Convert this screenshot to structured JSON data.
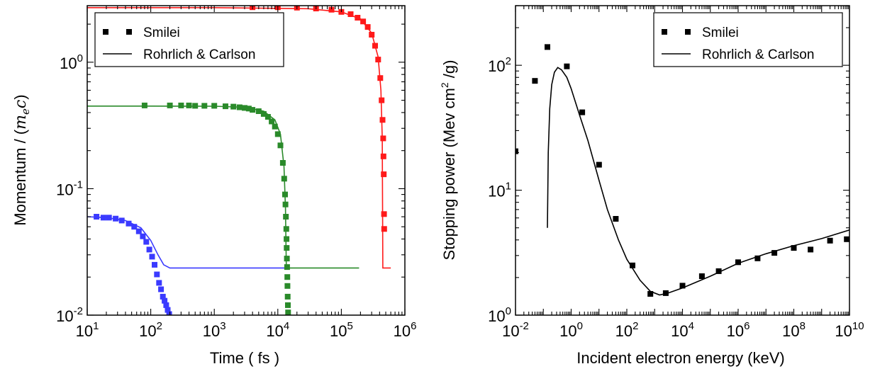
{
  "chart_data": [
    {
      "type": "line",
      "xlabel": "Time ( fs )",
      "ylabel_text": "Momentum / (",
      "ylabel_math_base": "m",
      "ylabel_math_sub": "e",
      "ylabel_math_tail": "c",
      "ylabel_close": ")",
      "x_scale": "log",
      "y_scale": "log",
      "xlim": [
        10,
        1000000
      ],
      "ylim": [
        0.01,
        2.8
      ],
      "x_tick_exponents": [
        "1",
        "2",
        "3",
        "4",
        "5",
        "6"
      ],
      "y_tick_exponents": [
        "-2",
        "-1",
        "0"
      ],
      "tick_base": "10",
      "grid": false,
      "legend_position": "top-left",
      "legend": [
        {
          "label": "Smilei",
          "marker": "square",
          "color": "#000000"
        },
        {
          "label": "Rohrlich & Carlson",
          "marker": "line",
          "color": "#000000"
        }
      ],
      "series": [
        {
          "color": "#3a3aff",
          "line": [
            [
              10,
              0.06
            ],
            [
              20,
              0.059
            ],
            [
              40,
              0.056
            ],
            [
              70,
              0.049
            ],
            [
              100,
              0.039
            ],
            [
              130,
              0.03
            ],
            [
              160,
              0.025
            ],
            [
              200,
              0.0236
            ],
            [
              400,
              0.0236
            ],
            [
              1000,
              0.0236
            ],
            [
              10000,
              0.0236
            ],
            [
              13000,
              0.0236
            ]
          ],
          "markers": [
            [
              14,
              0.06
            ],
            [
              18,
              0.059
            ],
            [
              22,
              0.059
            ],
            [
              28,
              0.058
            ],
            [
              35,
              0.056
            ],
            [
              45,
              0.053
            ],
            [
              55,
              0.05
            ],
            [
              65,
              0.046
            ],
            [
              75,
              0.042
            ],
            [
              85,
              0.038
            ],
            [
              95,
              0.033
            ],
            [
              105,
              0.029
            ],
            [
              115,
              0.025
            ],
            [
              125,
              0.021
            ],
            [
              135,
              0.018
            ],
            [
              145,
              0.016
            ],
            [
              155,
              0.014
            ],
            [
              165,
              0.013
            ],
            [
              175,
              0.012
            ],
            [
              185,
              0.011
            ],
            [
              195,
              0.0102
            ]
          ]
        },
        {
          "color": "#2a8a2a",
          "line": [
            [
              10,
              0.45
            ],
            [
              100,
              0.45
            ],
            [
              1000,
              0.449
            ],
            [
              3000,
              0.44
            ],
            [
              6000,
              0.41
            ],
            [
              9000,
              0.35
            ],
            [
              11000,
              0.27
            ],
            [
              12500,
              0.15
            ],
            [
              13200,
              0.07
            ],
            [
              13600,
              0.0236
            ],
            [
              20000,
              0.0236
            ],
            [
              100000,
              0.0236
            ],
            [
              190000,
              0.0236
            ]
          ],
          "markers": [
            [
              80,
              0.455
            ],
            [
              200,
              0.455
            ],
            [
              300,
              0.455
            ],
            [
              400,
              0.455
            ],
            [
              500,
              0.452
            ],
            [
              700,
              0.452
            ],
            [
              1000,
              0.452
            ],
            [
              1500,
              0.448
            ],
            [
              2000,
              0.445
            ],
            [
              2500,
              0.44
            ],
            [
              3000,
              0.435
            ],
            [
              3500,
              0.43
            ],
            [
              4000,
              0.42
            ],
            [
              5000,
              0.41
            ],
            [
              6000,
              0.39
            ],
            [
              7000,
              0.37
            ],
            [
              8000,
              0.34
            ],
            [
              9000,
              0.31
            ],
            [
              10000,
              0.27
            ],
            [
              11000,
              0.22
            ],
            [
              12000,
              0.16
            ],
            [
              12600,
              0.12
            ],
            [
              13000,
              0.09
            ],
            [
              13200,
              0.075
            ],
            [
              13400,
              0.06
            ],
            [
              13600,
              0.048
            ],
            [
              13700,
              0.04
            ],
            [
              13800,
              0.034
            ],
            [
              13900,
              0.028
            ],
            [
              14000,
              0.024
            ],
            [
              14100,
              0.02
            ],
            [
              14200,
              0.017
            ],
            [
              14300,
              0.014
            ],
            [
              14400,
              0.012
            ],
            [
              14500,
              0.0105
            ]
          ]
        },
        {
          "color": "#ff1a1a",
          "line": [
            [
              10,
              2.7
            ],
            [
              1000,
              2.7
            ],
            [
              30000,
              2.65
            ],
            [
              100000,
              2.5
            ],
            [
              200000,
              2.2
            ],
            [
              300000,
              1.7
            ],
            [
              380000,
              1.1
            ],
            [
              420000,
              0.6
            ],
            [
              440000,
              0.25
            ],
            [
              450000,
              0.0236
            ],
            [
              600000,
              0.0236
            ]
          ],
          "markers": [
            [
              4000,
              2.72
            ],
            [
              10000,
              2.72
            ],
            [
              20000,
              2.7
            ],
            [
              40000,
              2.66
            ],
            [
              70000,
              2.6
            ],
            [
              100000,
              2.5
            ],
            [
              140000,
              2.4
            ],
            [
              180000,
              2.25
            ],
            [
              220000,
              2.1
            ],
            [
              260000,
              1.9
            ],
            [
              300000,
              1.65
            ],
            [
              340000,
              1.35
            ],
            [
              380000,
              1.05
            ],
            [
              410000,
              0.75
            ],
            [
              430000,
              0.5
            ],
            [
              445000,
              0.35
            ],
            [
              455000,
              0.25
            ],
            [
              460000,
              0.18
            ],
            [
              465000,
              0.13
            ],
            [
              470000,
              0.063
            ],
            [
              472000,
              0.048
            ]
          ]
        }
      ]
    },
    {
      "type": "line",
      "xlabel": "Incident electron energy (keV)",
      "ylabel_text": "Stopping power (Mev cm",
      "ylabel_sup": "2",
      "ylabel_tail": " /g)",
      "x_scale": "log",
      "y_scale": "log",
      "xlim": [
        0.01,
        10000000000
      ],
      "ylim": [
        1,
        300
      ],
      "x_tick_exponents": [
        "-2",
        "0",
        "2",
        "4",
        "6",
        "8",
        "10"
      ],
      "y_tick_exponents": [
        "0",
        "1",
        "2"
      ],
      "tick_base": "10",
      "grid": false,
      "legend_position": "top-right",
      "legend": [
        {
          "label": "Smilei",
          "marker": "square",
          "color": "#000000"
        },
        {
          "label": "Rohrlich & Carlson",
          "marker": "line",
          "color": "#000000"
        }
      ],
      "series": [
        {
          "color": "#000000",
          "line": [
            [
              0.14,
              5
            ],
            [
              0.15,
              20
            ],
            [
              0.17,
              45
            ],
            [
              0.2,
              70
            ],
            [
              0.25,
              88
            ],
            [
              0.33,
              96
            ],
            [
              0.45,
              92
            ],
            [
              0.7,
              80
            ],
            [
              1,
              65
            ],
            [
              2,
              40
            ],
            [
              4,
              25
            ],
            [
              10,
              12
            ],
            [
              20,
              7
            ],
            [
              50,
              4
            ],
            [
              100,
              2.8
            ],
            [
              300,
              1.9
            ],
            [
              700,
              1.55
            ],
            [
              1500,
              1.45
            ],
            [
              3000,
              1.5
            ],
            [
              10000,
              1.65
            ],
            [
              100000,
              2.05
            ],
            [
              1000000,
              2.6
            ],
            [
              10000000,
              3.1
            ],
            [
              100000000,
              3.6
            ],
            [
              1000000000,
              4.1
            ],
            [
              10000000000,
              4.8
            ]
          ],
          "markers": [
            [
              0.01,
              20.5
            ],
            [
              0.05,
              75
            ],
            [
              0.14,
              140
            ],
            [
              0.7,
              98
            ],
            [
              2.5,
              42
            ],
            [
              10,
              16
            ],
            [
              40,
              5.9
            ],
            [
              160,
              2.5
            ],
            [
              700,
              1.48
            ],
            [
              2500,
              1.5
            ],
            [
              10000,
              1.72
            ],
            [
              50000,
              2.05
            ],
            [
              200000,
              2.25
            ],
            [
              1000000,
              2.65
            ],
            [
              5000000,
              2.85
            ],
            [
              20000000,
              3.15
            ],
            [
              100000000,
              3.45
            ],
            [
              400000000,
              3.35
            ],
            [
              2000000000,
              3.95
            ],
            [
              8000000000,
              4.05
            ]
          ]
        }
      ]
    }
  ]
}
